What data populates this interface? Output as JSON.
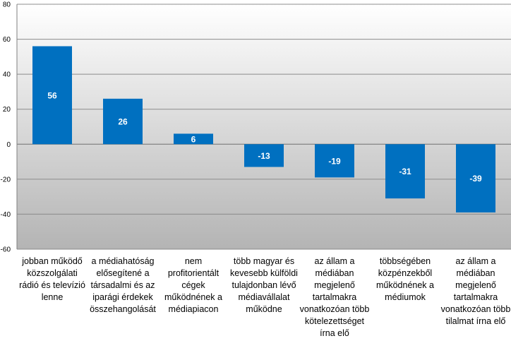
{
  "chart_data": {
    "type": "bar",
    "categories": [
      "jobban működő közszolgálati rádió és televízió lenne",
      "a médiahatóság elősegítené a társadalmi és az iparági érdekek összehangolását",
      "nem profitorientált cégek működnének a médiapiacon",
      "több magyar és kevesebb külföldi tulajdonban lévő médiavállalat működne",
      "az állam a médiában megjelenő tartalmakra vonatkozóan több kötelezettséget írna elő",
      "többségében közpénzekből működnének a médiumok",
      "az állam a médiában megjelenő tartalmakra vonatkozóan több tilalmat írna elő"
    ],
    "values": [
      56,
      26,
      6,
      -13,
      -19,
      -31,
      -39
    ],
    "ylim": [
      -60,
      80
    ],
    "yticks": [
      "80",
      "60",
      "40",
      "20",
      "0",
      "-20",
      "-40",
      "-60"
    ],
    "grid": true,
    "bar_color": "#0070c0",
    "background": "gradient light-gray"
  }
}
